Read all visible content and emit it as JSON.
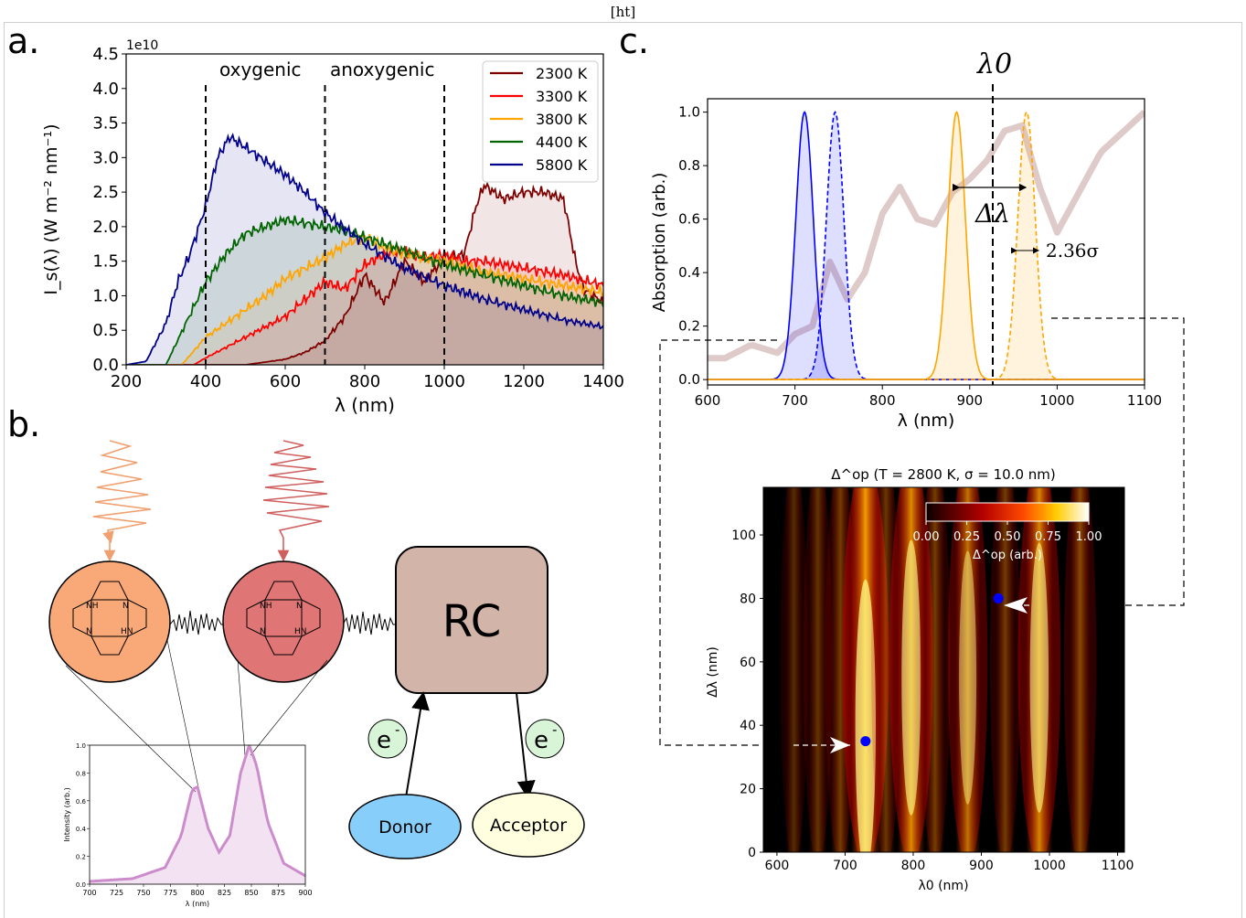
{
  "header": {
    "tag": "[ht]"
  },
  "panels": {
    "a": "a.",
    "b": "b.",
    "c": "c."
  },
  "colors": {
    "k2300": "#7f0000",
    "k3300": "#ff0000",
    "k3800": "#ffa500",
    "k4400": "#006400",
    "k5800": "#00008b",
    "blue": "#0000ff",
    "orange": "#ffa500",
    "bg_spectrum": "#c9a6a6",
    "inset_line": "#cc8ccc",
    "rc_fill": "#d2b4a9",
    "donor_fill": "#87cefa",
    "acceptor_fill": "#ffffe0",
    "electron_fill": "#d8f5d8",
    "pigment1": "#f9a978",
    "pigment2": "#e07575"
  },
  "chart_data": [
    {
      "id": "a",
      "type": "area",
      "title": "",
      "xlabel": "λ (nm)",
      "ylabel": "I_s(λ) (W m⁻² nm⁻¹)",
      "y_multiplier": "1e10",
      "xlim": [
        200,
        1400
      ],
      "ylim": [
        0,
        4.5
      ],
      "xticks": [
        200,
        400,
        600,
        800,
        1000,
        1200,
        1400
      ],
      "yticks": [
        0.0,
        0.5,
        1.0,
        1.5,
        2.0,
        2.5,
        3.0,
        3.5,
        4.0,
        4.5
      ],
      "vlines": [
        400,
        700,
        1000
      ],
      "region_labels": [
        "oxygenic",
        "anoxygenic"
      ],
      "legend_position": "top-right",
      "series": [
        {
          "name": "2300 K",
          "color": "#7f0000",
          "x": [
            200,
            500,
            600,
            650,
            700,
            750,
            800,
            850,
            900,
            950,
            1000,
            1050,
            1080,
            1100,
            1150,
            1200,
            1250,
            1300,
            1330,
            1350,
            1400
          ],
          "values": [
            0,
            0,
            0.08,
            0.18,
            0.35,
            0.7,
            1.3,
            0.9,
            1.5,
            1.2,
            1.55,
            1.6,
            2.3,
            2.6,
            2.4,
            2.5,
            2.5,
            2.4,
            1.5,
            1.1,
            0.9
          ]
        },
        {
          "name": "3300 K",
          "color": "#ff0000",
          "x": [
            200,
            370,
            400,
            450,
            500,
            550,
            600,
            650,
            700,
            750,
            800,
            850,
            900,
            950,
            1000,
            1050,
            1100,
            1200,
            1300,
            1400
          ],
          "values": [
            0,
            0,
            0.1,
            0.25,
            0.4,
            0.55,
            0.7,
            0.95,
            1.2,
            1.1,
            1.45,
            1.6,
            1.65,
            1.55,
            1.6,
            1.5,
            1.5,
            1.4,
            1.3,
            1.15
          ]
        },
        {
          "name": "3800 K",
          "color": "#ffa500",
          "x": [
            200,
            340,
            400,
            450,
            500,
            550,
            600,
            650,
            700,
            750,
            800,
            850,
            900,
            950,
            1000,
            1100,
            1200,
            1300,
            1400
          ],
          "values": [
            0,
            0,
            0.4,
            0.6,
            0.8,
            1.0,
            1.25,
            1.4,
            1.55,
            1.75,
            1.85,
            1.7,
            1.6,
            1.55,
            1.5,
            1.35,
            1.25,
            1.15,
            1.05
          ]
        },
        {
          "name": "4400 K",
          "color": "#006400",
          "x": [
            200,
            300,
            350,
            400,
            450,
            500,
            550,
            600,
            650,
            700,
            750,
            800,
            900,
            1000,
            1100,
            1200,
            1300,
            1400
          ],
          "values": [
            0,
            0,
            0.6,
            1.2,
            1.6,
            1.9,
            2.0,
            2.1,
            2.05,
            2.0,
            1.95,
            1.85,
            1.65,
            1.45,
            1.3,
            1.15,
            1.0,
            0.9
          ]
        },
        {
          "name": "5800 K",
          "color": "#00008b",
          "x": [
            200,
            250,
            300,
            330,
            360,
            400,
            430,
            460,
            500,
            550,
            600,
            650,
            700,
            800,
            900,
            1000,
            1100,
            1200,
            1300,
            1400
          ],
          "values": [
            0,
            0.05,
            0.6,
            1.2,
            1.6,
            2.3,
            3.0,
            3.3,
            3.15,
            2.95,
            2.75,
            2.5,
            2.2,
            1.75,
            1.4,
            1.15,
            0.95,
            0.8,
            0.65,
            0.55
          ]
        }
      ]
    },
    {
      "id": "b_inset",
      "type": "area",
      "title": "",
      "xlabel": "λ (nm)",
      "ylabel": "Intensity (arb.)",
      "xlim": [
        700,
        900
      ],
      "ylim": [
        0,
        1.0
      ],
      "xticks": [
        700,
        725,
        750,
        775,
        800,
        825,
        850,
        875,
        900
      ],
      "yticks": [
        0.0,
        0.2,
        0.4,
        0.6,
        0.8,
        1.0
      ],
      "series": [
        {
          "name": "",
          "color": "#cc8ccc",
          "x": [
            700,
            740,
            770,
            785,
            795,
            800,
            810,
            820,
            830,
            840,
            848,
            855,
            865,
            880,
            900
          ],
          "values": [
            0.02,
            0.04,
            0.12,
            0.35,
            0.68,
            0.7,
            0.4,
            0.23,
            0.35,
            0.8,
            1.0,
            0.85,
            0.45,
            0.15,
            0.06
          ]
        }
      ]
    },
    {
      "id": "c_top",
      "type": "line",
      "title": "",
      "xlabel": "λ (nm)",
      "ylabel": "Absorption (arb.)",
      "xlim": [
        600,
        1100
      ],
      "ylim": [
        -0.02,
        1.05
      ],
      "xticks": [
        600,
        700,
        800,
        900,
        1000,
        1100
      ],
      "yticks": [
        0.0,
        0.2,
        0.4,
        0.6,
        0.8,
        1.0
      ],
      "vline": 925,
      "annotations": [
        "λ0",
        "Δλ",
        "2.36σ"
      ],
      "background_spectrum": {
        "x": [
          600,
          620,
          650,
          680,
          700,
          720,
          740,
          760,
          780,
          800,
          820,
          840,
          860,
          880,
          900,
          920,
          940,
          960,
          980,
          1000,
          1050,
          1100
        ],
        "values": [
          0.08,
          0.08,
          0.13,
          0.1,
          0.17,
          0.2,
          0.44,
          0.3,
          0.4,
          0.62,
          0.72,
          0.6,
          0.58,
          0.7,
          0.75,
          0.82,
          0.93,
          0.95,
          0.72,
          0.55,
          0.85,
          1.0
        ]
      },
      "peaks": [
        {
          "center": 711,
          "sigma": 10,
          "color": "#0000ff",
          "style": "solid"
        },
        {
          "center": 746,
          "sigma": 10,
          "color": "#0000ff",
          "style": "dashed"
        },
        {
          "center": 885,
          "sigma": 10,
          "color": "#ffa500",
          "style": "solid"
        },
        {
          "center": 965,
          "sigma": 10,
          "color": "#ffa500",
          "style": "dashed"
        }
      ]
    },
    {
      "id": "c_bottom",
      "type": "heatmap",
      "title": "Δ^op (T = 2800 K, σ = 10.0 nm)",
      "xlabel": "λ0 (nm)",
      "ylabel": "Δλ (nm)",
      "xlim": [
        580,
        1110
      ],
      "ylim": [
        0,
        115
      ],
      "xticks": [
        600,
        700,
        800,
        900,
        1000,
        1100
      ],
      "yticks": [
        0,
        20,
        40,
        60,
        80,
        100
      ],
      "colorbar": {
        "label": "Δ^op (arb.)",
        "ticks": [
          "0.00",
          "0.25",
          "0.50",
          "0.75",
          "1.00"
        ],
        "colormap": "hot"
      },
      "bands": [
        {
          "center": 625,
          "height": 0.05
        },
        {
          "center": 660,
          "height": 0.12
        },
        {
          "center": 693,
          "height": 0.2
        },
        {
          "center": 730,
          "height": 1.0
        },
        {
          "center": 760,
          "height": 0.15
        },
        {
          "center": 797,
          "height": 0.85
        },
        {
          "center": 832,
          "height": 0.2
        },
        {
          "center": 880,
          "height": 0.65
        },
        {
          "center": 935,
          "height": 0.2
        },
        {
          "center": 985,
          "height": 0.8
        },
        {
          "center": 1045,
          "height": 0.3
        }
      ],
      "markers": [
        {
          "x": 730,
          "y": 35
        },
        {
          "x": 925,
          "y": 80
        }
      ]
    }
  ],
  "diagram_b": {
    "rc_label": "RC",
    "donor_label": "Donor",
    "acceptor_label": "Acceptor",
    "electron_label": "e",
    "electron_sup": "-",
    "pigment_labels": {
      "nh": "NH",
      "n": "N",
      "hn": "HN"
    }
  }
}
